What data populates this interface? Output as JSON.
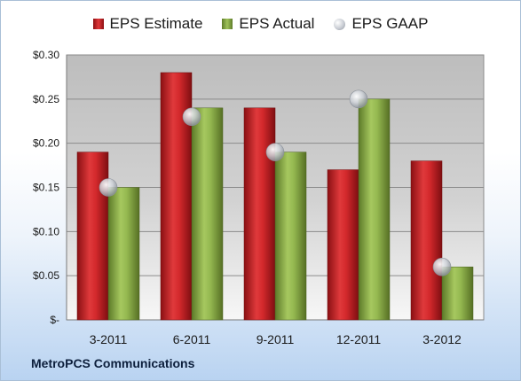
{
  "legend": {
    "estimate": "EPS Estimate",
    "actual": "EPS Actual",
    "gaap": "EPS GAAP"
  },
  "company": "MetroPCS Communications",
  "colors": {
    "estimate": "#c42327",
    "actual": "#8daf4a",
    "gaap": "#b9bec6",
    "plot_bg": "#c8c8c8"
  },
  "chart_data": {
    "type": "bar",
    "categories": [
      "3-2011",
      "6-2011",
      "9-2011",
      "12-2011",
      "3-2012"
    ],
    "series": [
      {
        "name": "EPS Estimate",
        "values": [
          0.19,
          0.28,
          0.24,
          0.17,
          0.18
        ]
      },
      {
        "name": "EPS Actual",
        "values": [
          0.15,
          0.24,
          0.19,
          0.25,
          0.06
        ]
      },
      {
        "name": "EPS GAAP",
        "kind": "marker",
        "values": [
          0.15,
          0.23,
          0.19,
          0.25,
          0.06
        ]
      }
    ],
    "ylim": [
      0,
      0.3
    ],
    "yticks": [
      0,
      0.05,
      0.1,
      0.15,
      0.2,
      0.25,
      0.3
    ],
    "ytick_labels": [
      "$-",
      "$0.05",
      "$0.10",
      "$0.15",
      "$0.20",
      "$0.25",
      "$0.30"
    ],
    "grid": true,
    "legend_position": "top"
  }
}
